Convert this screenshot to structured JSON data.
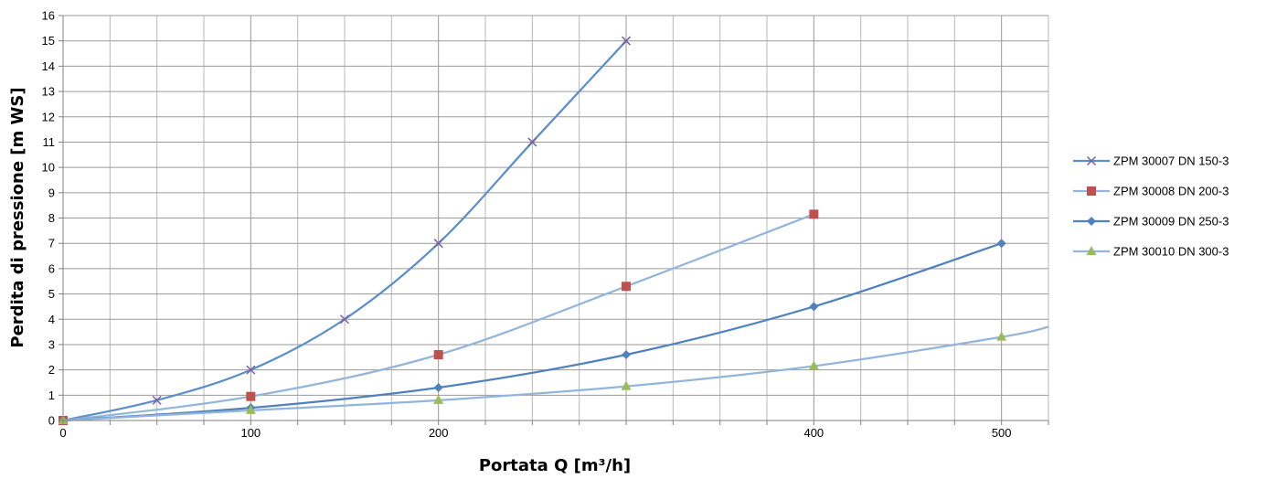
{
  "chart_data": {
    "type": "line",
    "title": "",
    "xlabel": "Portata Q [m³/h]",
    "ylabel": "Perdita di pressione  [m WS]",
    "xlim": [
      0,
      525
    ],
    "ylim": [
      0,
      16
    ],
    "x_ticks": [
      0,
      100,
      200,
      400,
      500
    ],
    "y_ticks": [
      0,
      1,
      2,
      3,
      4,
      5,
      6,
      7,
      8,
      9,
      10,
      11,
      12,
      13,
      14,
      15,
      16
    ],
    "grid": true,
    "legend_position": "right",
    "series": [
      {
        "name": "ZPM 30007 DN 150-3",
        "color": "#5b8fc9",
        "marker": "x",
        "marker_color": "#7a5fa3",
        "x": [
          0,
          50,
          100,
          150,
          200,
          250,
          300
        ],
        "y": [
          0,
          0.8,
          2.0,
          4.0,
          7.0,
          11.0,
          15.0
        ]
      },
      {
        "name": "ZPM 30008 DN 200-3",
        "color": "#92b5dc",
        "marker": "square",
        "marker_color": "#c0504d",
        "x": [
          0,
          100,
          200,
          300,
          400
        ],
        "y": [
          0,
          0.95,
          2.6,
          5.3,
          8.15
        ]
      },
      {
        "name": "ZPM 30009 DN 250-3",
        "color": "#4f81bd",
        "marker": "diamond",
        "marker_color": "#4f81bd",
        "x": [
          0,
          100,
          200,
          300,
          400,
          500
        ],
        "y": [
          0,
          0.5,
          1.3,
          2.6,
          4.5,
          7.0
        ]
      },
      {
        "name": "ZPM 30010 DN 300-3",
        "color": "#92b5dc",
        "marker": "triangle",
        "marker_color": "#9bbb59",
        "x": [
          0,
          100,
          200,
          300,
          400,
          500,
          525
        ],
        "y": [
          0,
          0.4,
          0.8,
          1.35,
          2.15,
          3.3,
          3.7
        ]
      }
    ]
  }
}
